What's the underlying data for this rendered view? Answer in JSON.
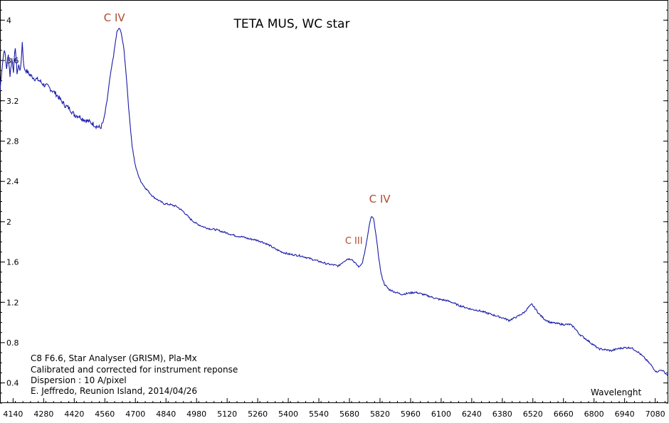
{
  "chart_data": {
    "type": "line",
    "title": "TETA MUS, WC star",
    "xlabel": "Wavelenght",
    "ylabel": "",
    "xlim": [
      4080,
      7140
    ],
    "ylim": [
      0.2,
      4.2
    ],
    "x_ticks": [
      4140,
      4280,
      4420,
      4560,
      4700,
      4840,
      4980,
      5120,
      5260,
      5400,
      5540,
      5680,
      5820,
      5960,
      6100,
      6240,
      6380,
      6520,
      6660,
      6800,
      6940,
      7080
    ],
    "y_ticks": [
      0.4,
      0.8,
      1.2,
      1.6,
      2,
      2.4,
      2.8,
      3.2,
      3.6,
      4
    ],
    "grid": false,
    "series": [
      {
        "color": "#1a1aa8",
        "points": [
          [
            4080,
            3.3
          ],
          [
            4090,
            3.55
          ],
          [
            4100,
            3.72
          ],
          [
            4110,
            3.52
          ],
          [
            4118,
            3.65
          ],
          [
            4126,
            3.45
          ],
          [
            4134,
            3.62
          ],
          [
            4142,
            3.5
          ],
          [
            4150,
            3.74
          ],
          [
            4158,
            3.48
          ],
          [
            4166,
            3.55
          ],
          [
            4174,
            3.5
          ],
          [
            4182,
            3.78
          ],
          [
            4190,
            3.52
          ],
          [
            4200,
            3.5
          ],
          [
            4220,
            3.45
          ],
          [
            4240,
            3.42
          ],
          [
            4260,
            3.4
          ],
          [
            4280,
            3.36
          ],
          [
            4300,
            3.34
          ],
          [
            4320,
            3.3
          ],
          [
            4340,
            3.26
          ],
          [
            4360,
            3.2
          ],
          [
            4380,
            3.15
          ],
          [
            4400,
            3.12
          ],
          [
            4420,
            3.06
          ],
          [
            4440,
            3.05
          ],
          [
            4460,
            3.02
          ],
          [
            4480,
            3.0
          ],
          [
            4500,
            2.98
          ],
          [
            4520,
            2.95
          ],
          [
            4540,
            2.93
          ],
          [
            4555,
            3.0
          ],
          [
            4570,
            3.2
          ],
          [
            4585,
            3.45
          ],
          [
            4600,
            3.65
          ],
          [
            4615,
            3.88
          ],
          [
            4625,
            3.92
          ],
          [
            4635,
            3.88
          ],
          [
            4648,
            3.7
          ],
          [
            4660,
            3.4
          ],
          [
            4672,
            3.05
          ],
          [
            4685,
            2.75
          ],
          [
            4700,
            2.55
          ],
          [
            4720,
            2.42
          ],
          [
            4740,
            2.35
          ],
          [
            4760,
            2.3
          ],
          [
            4780,
            2.25
          ],
          [
            4800,
            2.22
          ],
          [
            4830,
            2.18
          ],
          [
            4860,
            2.17
          ],
          [
            4890,
            2.15
          ],
          [
            4920,
            2.1
          ],
          [
            4950,
            2.03
          ],
          [
            4980,
            1.98
          ],
          [
            5010,
            1.95
          ],
          [
            5040,
            1.93
          ],
          [
            5070,
            1.92
          ],
          [
            5100,
            1.9
          ],
          [
            5130,
            1.88
          ],
          [
            5160,
            1.86
          ],
          [
            5190,
            1.85
          ],
          [
            5220,
            1.83
          ],
          [
            5250,
            1.82
          ],
          [
            5280,
            1.8
          ],
          [
            5310,
            1.77
          ],
          [
            5340,
            1.73
          ],
          [
            5370,
            1.7
          ],
          [
            5400,
            1.68
          ],
          [
            5430,
            1.67
          ],
          [
            5460,
            1.66
          ],
          [
            5490,
            1.64
          ],
          [
            5520,
            1.62
          ],
          [
            5550,
            1.6
          ],
          [
            5580,
            1.58
          ],
          [
            5610,
            1.57
          ],
          [
            5630,
            1.56
          ],
          [
            5650,
            1.6
          ],
          [
            5670,
            1.63
          ],
          [
            5690,
            1.63
          ],
          [
            5710,
            1.58
          ],
          [
            5725,
            1.55
          ],
          [
            5740,
            1.6
          ],
          [
            5755,
            1.75
          ],
          [
            5770,
            1.95
          ],
          [
            5780,
            2.05
          ],
          [
            5790,
            2.03
          ],
          [
            5800,
            1.9
          ],
          [
            5812,
            1.68
          ],
          [
            5825,
            1.48
          ],
          [
            5840,
            1.38
          ],
          [
            5860,
            1.33
          ],
          [
            5890,
            1.3
          ],
          [
            5920,
            1.28
          ],
          [
            5950,
            1.29
          ],
          [
            5980,
            1.3
          ],
          [
            6000,
            1.29
          ],
          [
            6030,
            1.27
          ],
          [
            6060,
            1.25
          ],
          [
            6090,
            1.23
          ],
          [
            6120,
            1.22
          ],
          [
            6150,
            1.2
          ],
          [
            6180,
            1.17
          ],
          [
            6210,
            1.15
          ],
          [
            6240,
            1.13
          ],
          [
            6270,
            1.12
          ],
          [
            6300,
            1.1
          ],
          [
            6330,
            1.08
          ],
          [
            6360,
            1.06
          ],
          [
            6390,
            1.04
          ],
          [
            6410,
            1.02
          ],
          [
            6430,
            1.04
          ],
          [
            6450,
            1.06
          ],
          [
            6480,
            1.1
          ],
          [
            6500,
            1.15
          ],
          [
            6515,
            1.18
          ],
          [
            6530,
            1.14
          ],
          [
            6550,
            1.08
          ],
          [
            6575,
            1.03
          ],
          [
            6600,
            1.0
          ],
          [
            6630,
            0.99
          ],
          [
            6660,
            0.98
          ],
          [
            6690,
            0.98
          ],
          [
            6710,
            0.95
          ],
          [
            6730,
            0.89
          ],
          [
            6760,
            0.84
          ],
          [
            6790,
            0.79
          ],
          [
            6820,
            0.74
          ],
          [
            6850,
            0.73
          ],
          [
            6880,
            0.72
          ],
          [
            6910,
            0.74
          ],
          [
            6940,
            0.75
          ],
          [
            6970,
            0.75
          ],
          [
            7000,
            0.71
          ],
          [
            7030,
            0.65
          ],
          [
            7060,
            0.58
          ],
          [
            7085,
            0.51
          ],
          [
            7110,
            0.53
          ],
          [
            7140,
            0.47
          ]
        ]
      }
    ],
    "annotations": [
      {
        "text": "C IV",
        "x": 4555,
        "y": 3.99
      },
      {
        "text": "C IV",
        "x": 5770,
        "y": 2.19
      },
      {
        "text": "C III",
        "x": 5660,
        "y": 1.78
      }
    ],
    "notes": [
      "C8 F6.6, Star Analyser (GRISM), Pla-Mx",
      "Calibrated and corrected for instrument reponse",
      "Dispersion : 10 A/pixel",
      "E. Jeffredo, Reunion Island, 2014/04/26"
    ]
  }
}
